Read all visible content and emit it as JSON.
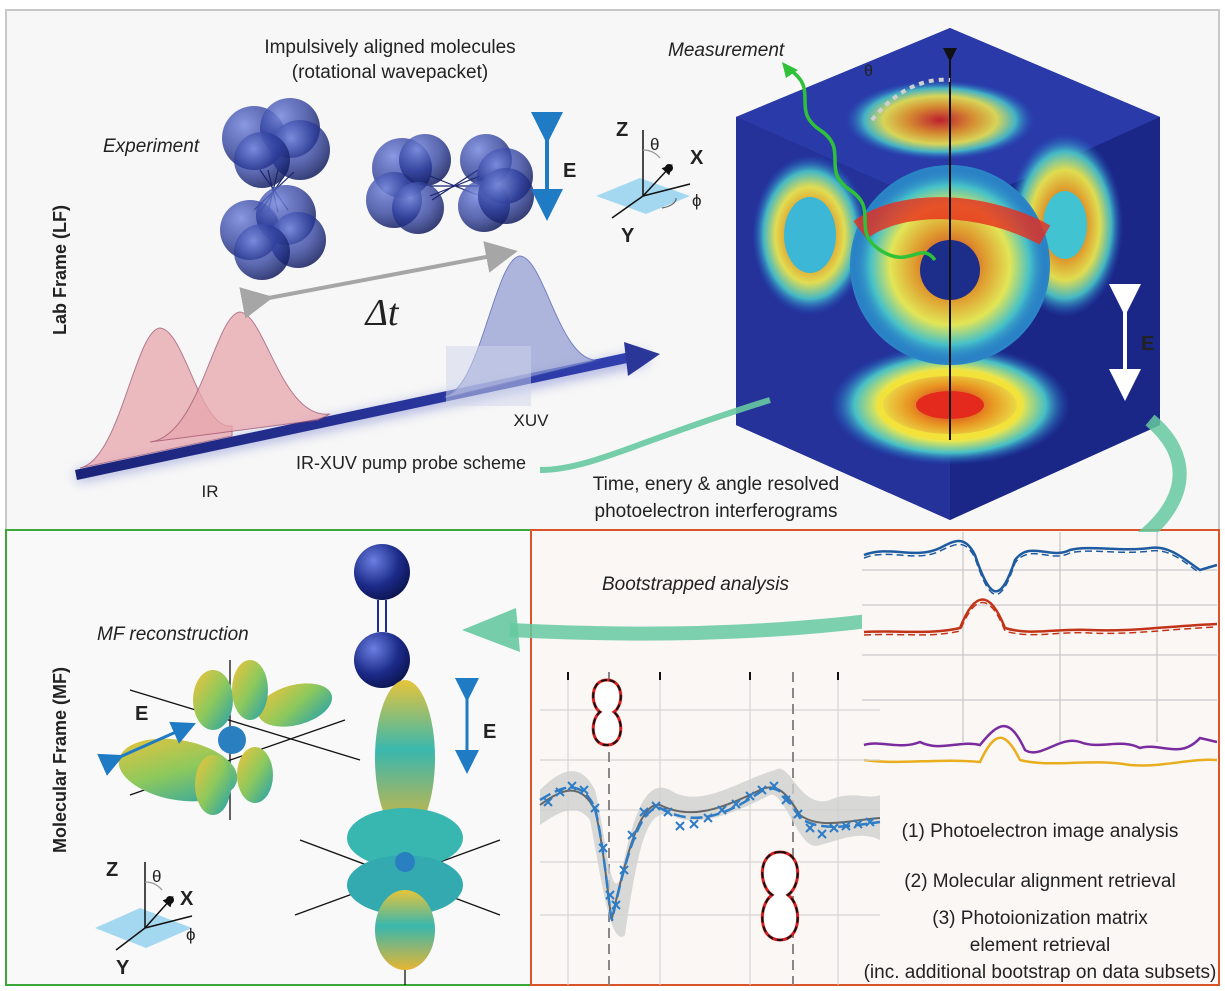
{
  "lab_frame": {
    "side_label": "Lab Frame (LF)",
    "experiment_label": "Experiment",
    "aligned_title": [
      "Impulsively aligned molecules",
      "(rotational wavepacket)"
    ],
    "delay_label": "Δt",
    "ir_label": "IR",
    "xuv_label": "XUV",
    "scheme_label": "IR-XUV pump probe scheme",
    "measurement_label": "Measurement",
    "theta_label": "θ",
    "field_label": "E",
    "interferogram_label": [
      "Time, enery & angle resolved",
      "photoelectron interferograms"
    ],
    "axes": {
      "z": "Z",
      "x": "X",
      "y": "Y",
      "theta": "θ",
      "phi": "ϕ"
    }
  },
  "molecular_frame": {
    "side_label": "Molecular Frame (MF)",
    "reconstruction_label": "MF reconstruction",
    "field_label": "E",
    "axes": {
      "z": "Z",
      "x": "X",
      "y": "Y",
      "theta": "θ",
      "phi": "ϕ"
    }
  },
  "analysis": {
    "title": "Bootstrapped analysis",
    "steps": [
      "(1) Photoelectron image analysis",
      "(2) Molecular alignment retrieval",
      "(3) Photoionization matrix",
      "element retrieval",
      "(inc. additional bootstrap on data subsets)"
    ]
  },
  "colors": {
    "lab_border": "#c8c8c8",
    "mf_border": "#3aa83a",
    "analysis_border": "#d9532b",
    "flow_arrow": "#66c9a0",
    "field_arrow": "#1f7bc4",
    "molecule": "#1e2f8a",
    "ir_pulse": "#e8a6ad",
    "xuv_pulse": "#8f9ad1"
  }
}
